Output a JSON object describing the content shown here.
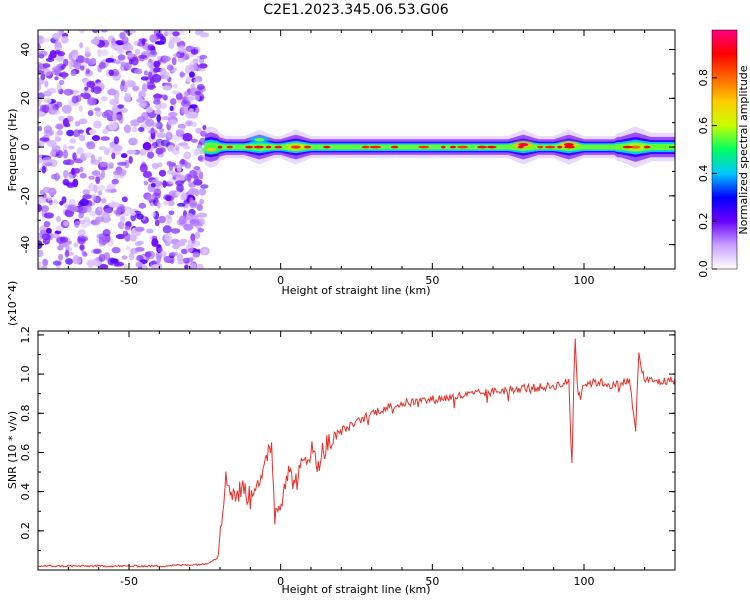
{
  "title": "C2E1.2023.345.06.53.G06",
  "chart_data": [
    {
      "type": "heatmap",
      "xlabel": "Height of straight line (km)",
      "ylabel": "Frequency (Hz)",
      "xlim": [
        -80,
        130
      ],
      "ylim": [
        -50,
        48
      ],
      "xticks": [
        -50,
        0,
        50,
        100
      ],
      "yticks": [
        40,
        20,
        0,
        -20,
        -40
      ],
      "colorbar": {
        "label": "Normalized spectral amplitude",
        "range": [
          0,
          1
        ],
        "ticks": [
          "0.0",
          "0.2",
          "0.4",
          "0.6",
          "0.8"
        ],
        "tick_values": [
          0.0,
          0.2,
          0.4,
          0.6,
          0.8
        ],
        "colors": [
          "#ffffff",
          "#c8a0ff",
          "#6a00ff",
          "#0000ff",
          "#00c8ff",
          "#00ff60",
          "#c8ff00",
          "#ffcc00",
          "#ff6600",
          "#ff0000",
          "#ff0080"
        ]
      },
      "noise_region": {
        "x_range": [
          -80,
          -25
        ],
        "freq_range": [
          -50,
          48
        ]
      },
      "signal_band": {
        "x_range": [
          -25,
          130
        ],
        "center_freq": 0,
        "peaks": [
          {
            "x": -23,
            "freq": -1,
            "amp": 0.7
          },
          {
            "x": -7,
            "freq": 3,
            "amp": 0.55
          },
          {
            "x": 5,
            "freq": 0,
            "amp": 0.85
          },
          {
            "x": 80,
            "freq": 1,
            "amp": 0.95
          },
          {
            "x": 95,
            "freq": 1,
            "amp": 0.9
          },
          {
            "x": 117,
            "freq": 0,
            "amp": 0.8
          }
        ]
      }
    },
    {
      "type": "line",
      "xlabel": "Height of straight line (km)",
      "ylabel": "SNR (10 * v/v)",
      "ylabel_scale": "(x10^4)",
      "xlim": [
        -80,
        130
      ],
      "ylim": [
        0,
        1.22
      ],
      "xticks": [
        -50,
        0,
        50,
        100
      ],
      "yticks": [
        0.2,
        0.4,
        0.6,
        0.8,
        1.0,
        1.2
      ],
      "ytick_labels": [
        "0.2",
        "0.4",
        "0.6",
        "0.8",
        "1.0",
        "1.2"
      ],
      "color": "#e8302a",
      "series": [
        {
          "x": [
            -80,
            -60,
            -40,
            -25,
            -21,
            -19,
            -18,
            -15,
            -12,
            -10,
            -8,
            -6,
            -4,
            -3,
            -2,
            0,
            2,
            5,
            8,
            10,
            12,
            15,
            18,
            20,
            25,
            30,
            35,
            40,
            45,
            50,
            55,
            60,
            65,
            70,
            75,
            80,
            85,
            90,
            93,
            95,
            96,
            97,
            98,
            100,
            105,
            110,
            115,
            117,
            118,
            120,
            125,
            130
          ],
          "y": [
            0.02,
            0.02,
            0.02,
            0.03,
            0.06,
            0.35,
            0.46,
            0.38,
            0.42,
            0.36,
            0.47,
            0.45,
            0.62,
            0.66,
            0.28,
            0.35,
            0.5,
            0.45,
            0.56,
            0.62,
            0.54,
            0.64,
            0.66,
            0.71,
            0.75,
            0.8,
            0.83,
            0.85,
            0.86,
            0.87,
            0.88,
            0.89,
            0.9,
            0.91,
            0.92,
            0.93,
            0.93,
            0.94,
            0.95,
            0.96,
            0.52,
            1.2,
            0.9,
            0.95,
            0.96,
            0.94,
            0.97,
            0.7,
            1.1,
            0.97,
            0.96,
            0.97
          ]
        }
      ]
    }
  ]
}
